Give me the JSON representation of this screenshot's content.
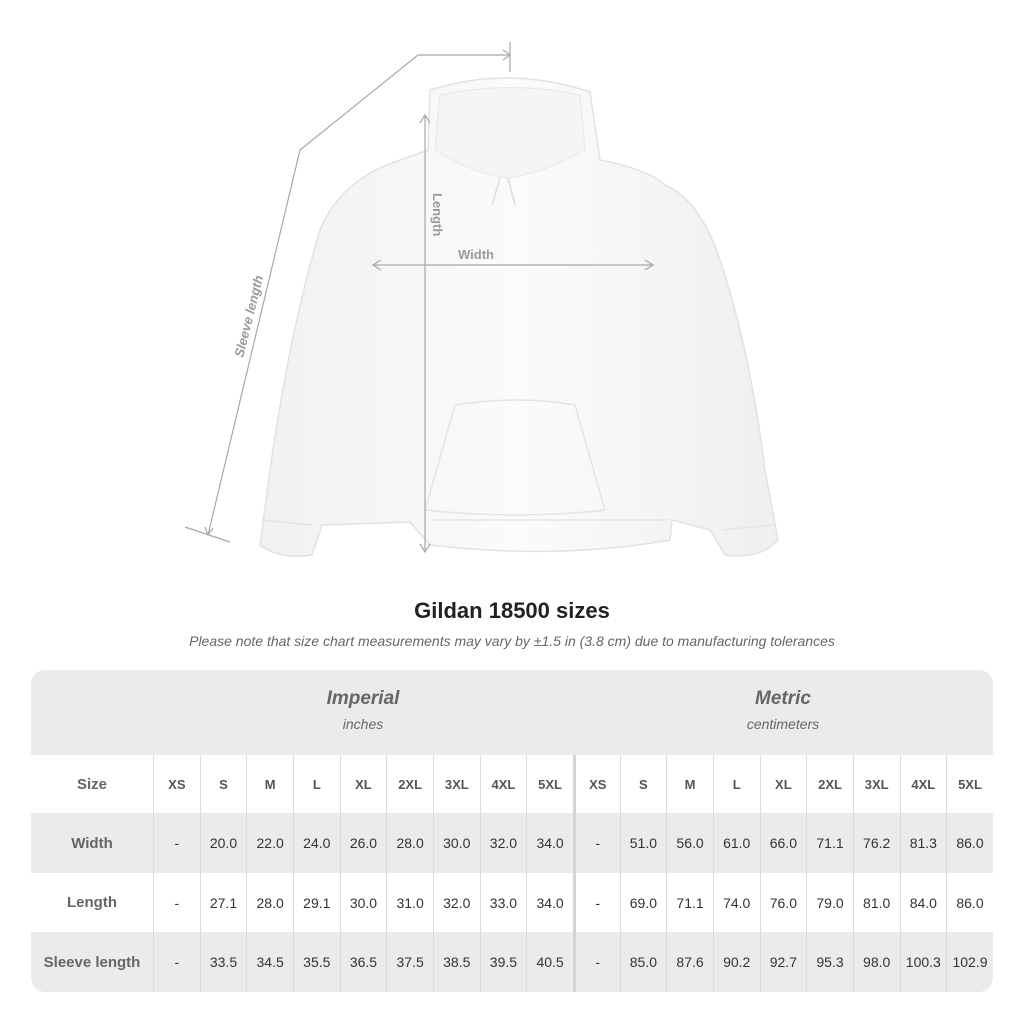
{
  "illustration": {
    "labels": {
      "length": "Length",
      "width": "Width",
      "sleeve": "Sleeve length"
    }
  },
  "title": "Gildan 18500 sizes",
  "note": "Please note that size chart measurements may vary by ±1.5 in (3.8 cm) due to manufacturing tolerances",
  "table": {
    "imperial": {
      "title": "Imperial",
      "unit": "inches"
    },
    "metric": {
      "title": "Metric",
      "unit": "centimeters"
    },
    "size_label": "Size",
    "sizes": [
      "XS",
      "S",
      "M",
      "L",
      "XL",
      "2XL",
      "3XL",
      "4XL",
      "5XL"
    ],
    "rows": [
      {
        "label": "Width",
        "imperial": [
          "-",
          "20.0",
          "22.0",
          "24.0",
          "26.0",
          "28.0",
          "30.0",
          "32.0",
          "34.0"
        ],
        "metric": [
          "-",
          "51.0",
          "56.0",
          "61.0",
          "66.0",
          "71.1",
          "76.2",
          "81.3",
          "86.0"
        ]
      },
      {
        "label": "Length",
        "imperial": [
          "-",
          "27.1",
          "28.0",
          "29.1",
          "30.0",
          "31.0",
          "32.0",
          "33.0",
          "34.0"
        ],
        "metric": [
          "-",
          "69.0",
          "71.1",
          "74.0",
          "76.0",
          "79.0",
          "81.0",
          "84.0",
          "86.0"
        ]
      },
      {
        "label": "Sleeve length",
        "imperial": [
          "-",
          "33.5",
          "34.5",
          "35.5",
          "36.5",
          "37.5",
          "38.5",
          "39.5",
          "40.5"
        ],
        "metric": [
          "-",
          "85.0",
          "87.6",
          "90.2",
          "92.7",
          "95.3",
          "98.0",
          "100.3",
          "102.9"
        ]
      }
    ]
  }
}
